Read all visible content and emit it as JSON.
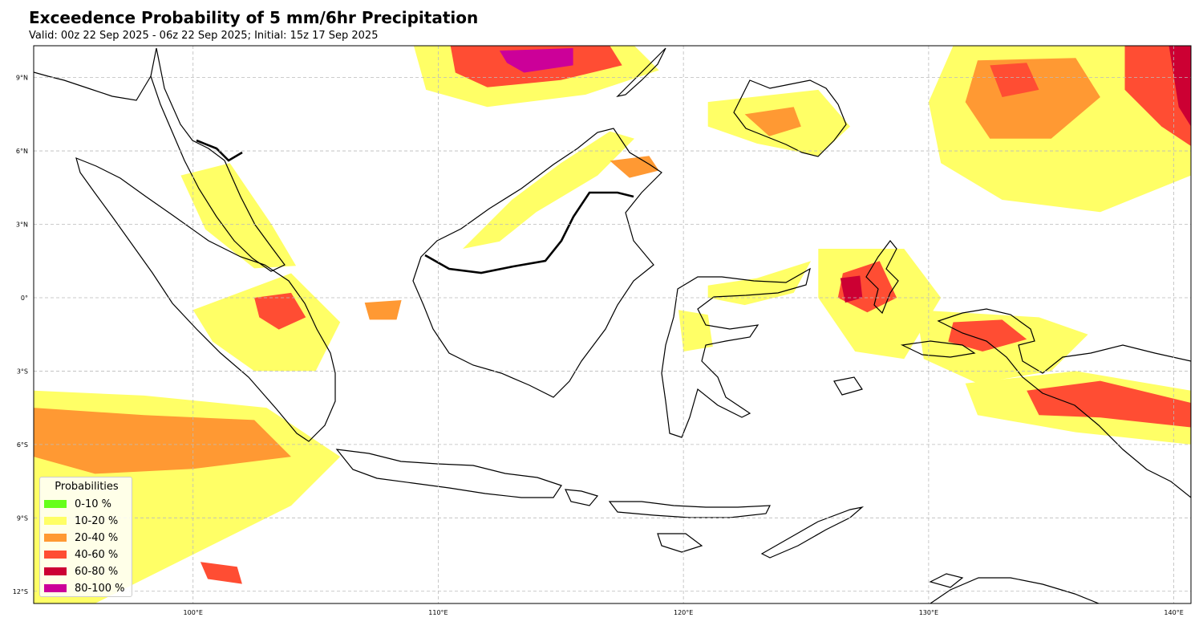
{
  "title": "Exceedence Probability of 5 mm/6hr Precipitation",
  "subtitle": "Valid: 00z 22 Sep 2025 - 06z 22 Sep 2025; Initial: 15z 17 Sep 2025",
  "map": {
    "lon_range": [
      93.5,
      140.7
    ],
    "lat_range": [
      -12.5,
      10.3
    ],
    "lon_ticks": [
      {
        "value": 100,
        "label": "100°E"
      },
      {
        "value": 110,
        "label": "110°E"
      },
      {
        "value": 120,
        "label": "120°E"
      },
      {
        "value": 130,
        "label": "130°E"
      },
      {
        "value": 140,
        "label": "140°E"
      }
    ],
    "lat_ticks": [
      {
        "value": 9,
        "label": "9°N"
      },
      {
        "value": 6,
        "label": "6°N"
      },
      {
        "value": 3,
        "label": "3°N"
      },
      {
        "value": 0,
        "label": "0°"
      },
      {
        "value": -3,
        "label": "3°S"
      },
      {
        "value": -6,
        "label": "6°S"
      },
      {
        "value": -9,
        "label": "9°S"
      },
      {
        "value": -12,
        "label": "12°S"
      }
    ],
    "gridlines": true,
    "coastline_color": "#000000"
  },
  "legend": {
    "title": "Probabilities",
    "placement": "lower-left",
    "items": [
      {
        "label": "0-10 %",
        "color": "#66ff1a"
      },
      {
        "label": "10-20 %",
        "color": "#ffff66"
      },
      {
        "label": "20-40 %",
        "color": "#ff9933"
      },
      {
        "label": "40-60 %",
        "color": "#ff4d33"
      },
      {
        "label": "60-80 %",
        "color": "#cc0033"
      },
      {
        "label": "80-100 %",
        "color": "#cc0099"
      }
    ]
  },
  "precip_areas": [
    {
      "name": "south-china-sea-north",
      "band": 1,
      "pts": [
        [
          109,
          10.3
        ],
        [
          118,
          10.3
        ],
        [
          119,
          9.3
        ],
        [
          116,
          8.3
        ],
        [
          112,
          7.8
        ],
        [
          109.5,
          8.5
        ]
      ]
    },
    {
      "name": "south-china-sea-north-core",
      "band": 3,
      "pts": [
        [
          110.5,
          10.3
        ],
        [
          117,
          10.3
        ],
        [
          117.5,
          9.5
        ],
        [
          115,
          8.9
        ],
        [
          112,
          8.6
        ],
        [
          110.7,
          9.2
        ]
      ]
    },
    {
      "name": "south-china-sea-north-peak",
      "band": 5,
      "pts": [
        [
          112.5,
          10.1
        ],
        [
          115.5,
          10.2
        ],
        [
          115.5,
          9.5
        ],
        [
          113.5,
          9.2
        ],
        [
          112.8,
          9.6
        ]
      ]
    },
    {
      "name": "borneo-northwest",
      "band": 1,
      "pts": [
        [
          111,
          2
        ],
        [
          113,
          4
        ],
        [
          115,
          5.5
        ],
        [
          117,
          6.8
        ],
        [
          118,
          6.5
        ],
        [
          116.5,
          5
        ],
        [
          114,
          3.5
        ],
        [
          112.5,
          2.3
        ]
      ]
    },
    {
      "name": "sabah-east",
      "band": 2,
      "pts": [
        [
          117,
          5.6
        ],
        [
          118.6,
          5.8
        ],
        [
          119,
          5.2
        ],
        [
          117.8,
          4.9
        ]
      ]
    },
    {
      "name": "philippines-south",
      "band": 1,
      "pts": [
        [
          121,
          8
        ],
        [
          125.5,
          8.5
        ],
        [
          126.8,
          7
        ],
        [
          125.5,
          5.8
        ],
        [
          123,
          6.3
        ],
        [
          121,
          7
        ]
      ]
    },
    {
      "name": "mindanao-core",
      "band": 2,
      "pts": [
        [
          122.5,
          7.5
        ],
        [
          124.5,
          7.8
        ],
        [
          124.8,
          7
        ],
        [
          123.5,
          6.6
        ]
      ]
    },
    {
      "name": "western-pacific-north",
      "band": 1,
      "pts": [
        [
          131,
          10.3
        ],
        [
          140.7,
          10.3
        ],
        [
          140.7,
          5
        ],
        [
          137,
          3.5
        ],
        [
          133,
          4
        ],
        [
          130.5,
          5.5
        ],
        [
          130,
          8
        ]
      ]
    },
    {
      "name": "western-pacific-north-core",
      "band": 2,
      "pts": [
        [
          132,
          9.7
        ],
        [
          136,
          9.8
        ],
        [
          137,
          8.2
        ],
        [
          135,
          6.5
        ],
        [
          132.5,
          6.5
        ],
        [
          131.5,
          8
        ]
      ]
    },
    {
      "name": "western-pacific-north-peak",
      "band": 3,
      "pts": [
        [
          132.5,
          9.5
        ],
        [
          134,
          9.6
        ],
        [
          134.5,
          8.5
        ],
        [
          133,
          8.2
        ]
      ]
    },
    {
      "name": "pacific-northeast",
      "band": 3,
      "pts": [
        [
          138,
          10.3
        ],
        [
          140.7,
          10.3
        ],
        [
          140.7,
          6.2
        ],
        [
          139.5,
          7
        ],
        [
          138,
          8.5
        ]
      ]
    },
    {
      "name": "pacific-northeast-peak",
      "band": 4,
      "pts": [
        [
          139.8,
          10.3
        ],
        [
          140.7,
          10.3
        ],
        [
          140.7,
          7
        ],
        [
          140.2,
          7.8
        ]
      ]
    },
    {
      "name": "malay-peninsula",
      "band": 1,
      "pts": [
        [
          99.5,
          5
        ],
        [
          101.5,
          5.5
        ],
        [
          103.2,
          3
        ],
        [
          104.2,
          1.3
        ],
        [
          102.5,
          1.2
        ],
        [
          100.5,
          2.8
        ]
      ]
    },
    {
      "name": "sumatra-central",
      "band": 1,
      "pts": [
        [
          100,
          -0.5
        ],
        [
          104,
          1
        ],
        [
          106,
          -1
        ],
        [
          105,
          -3
        ],
        [
          102.5,
          -3
        ],
        [
          100.8,
          -1.8
        ]
      ]
    },
    {
      "name": "riau-core",
      "band": 3,
      "pts": [
        [
          102.5,
          0
        ],
        [
          104,
          0.2
        ],
        [
          104.6,
          -0.8
        ],
        [
          103.5,
          -1.3
        ],
        [
          102.7,
          -0.8
        ]
      ]
    },
    {
      "name": "bangka-core",
      "band": 2,
      "pts": [
        [
          107,
          -0.2
        ],
        [
          108.5,
          -0.1
        ],
        [
          108.3,
          -0.9
        ],
        [
          107.2,
          -0.9
        ]
      ]
    },
    {
      "name": "indian-ocean-west",
      "band": 1,
      "pts": [
        [
          93.5,
          -3.8
        ],
        [
          98,
          -4
        ],
        [
          103,
          -4.5
        ],
        [
          106,
          -6.5
        ],
        [
          104,
          -8.5
        ],
        [
          99,
          -11
        ],
        [
          96,
          -12.5
        ],
        [
          93.5,
          -12.5
        ]
      ]
    },
    {
      "name": "indian-ocean-west-core",
      "band": 2,
      "pts": [
        [
          93.5,
          -4.5
        ],
        [
          98,
          -4.8
        ],
        [
          102.5,
          -5
        ],
        [
          104,
          -6.5
        ],
        [
          100,
          -7
        ],
        [
          96,
          -7.2
        ],
        [
          93.5,
          -6.5
        ]
      ]
    },
    {
      "name": "indian-ocean-south-core",
      "band": 3,
      "pts": [
        [
          100.3,
          -10.8
        ],
        [
          101.8,
          -11
        ],
        [
          102,
          -11.7
        ],
        [
          100.6,
          -11.5
        ]
      ]
    },
    {
      "name": "sulawesi-north",
      "band": 1,
      "pts": [
        [
          121,
          0.5
        ],
        [
          123,
          0.8
        ],
        [
          125.2,
          1.5
        ],
        [
          124.5,
          0.2
        ],
        [
          122.5,
          -0.3
        ],
        [
          121,
          0
        ]
      ]
    },
    {
      "name": "central-sulawesi",
      "band": 1,
      "pts": [
        [
          119.8,
          -0.5
        ],
        [
          121,
          -0.7
        ],
        [
          121.2,
          -2
        ],
        [
          120,
          -2.2
        ]
      ]
    },
    {
      "name": "maluku-north",
      "band": 1,
      "pts": [
        [
          125.5,
          2
        ],
        [
          129,
          2
        ],
        [
          130.5,
          0
        ],
        [
          129,
          -2.5
        ],
        [
          127,
          -2.2
        ],
        [
          125.5,
          0
        ]
      ]
    },
    {
      "name": "maluku-north-core",
      "band": 3,
      "pts": [
        [
          126.5,
          1
        ],
        [
          128,
          1.5
        ],
        [
          128.7,
          0
        ],
        [
          127.5,
          -0.6
        ],
        [
          126.3,
          0
        ]
      ]
    },
    {
      "name": "maluku-north-peak",
      "band": 4,
      "pts": [
        [
          126.4,
          0.8
        ],
        [
          127.2,
          0.9
        ],
        [
          127.3,
          0
        ],
        [
          126.6,
          -0.2
        ]
      ]
    },
    {
      "name": "papua-west",
      "band": 1,
      "pts": [
        [
          129.5,
          -0.5
        ],
        [
          134.5,
          -0.8
        ],
        [
          136.5,
          -1.5
        ],
        [
          135,
          -3
        ],
        [
          132,
          -3.5
        ],
        [
          129.8,
          -2.5
        ]
      ]
    },
    {
      "name": "papua-west-core",
      "band": 3,
      "pts": [
        [
          131,
          -1
        ],
        [
          133,
          -0.9
        ],
        [
          134,
          -1.7
        ],
        [
          132.2,
          -2.2
        ],
        [
          130.8,
          -1.8
        ]
      ]
    },
    {
      "name": "papua-south-coast",
      "band": 1,
      "pts": [
        [
          131.5,
          -3.5
        ],
        [
          136,
          -3
        ],
        [
          140.7,
          -3.8
        ],
        [
          140.7,
          -6
        ],
        [
          136,
          -5.5
        ],
        [
          132,
          -4.8
        ]
      ]
    },
    {
      "name": "papua-south-coast-core",
      "band": 3,
      "pts": [
        [
          134,
          -3.8
        ],
        [
          137,
          -3.4
        ],
        [
          140.7,
          -4.3
        ],
        [
          140.7,
          -5.3
        ],
        [
          137,
          -4.9
        ],
        [
          134.5,
          -4.8
        ]
      ]
    }
  ]
}
